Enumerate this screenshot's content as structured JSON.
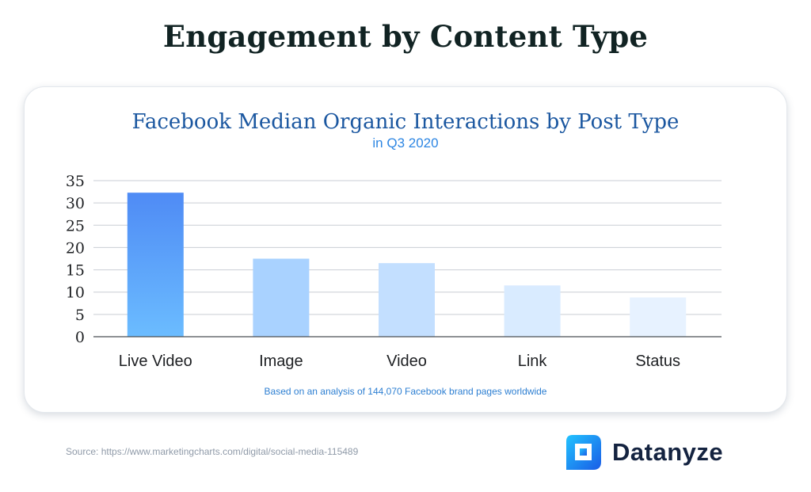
{
  "page": {
    "title": "Engagement by Content Type",
    "source": "Source: https://www.marketingcharts.com/digital/social-media-115489"
  },
  "brand": {
    "name": "Datanyze",
    "logo_icon": "datanyze-logo-icon"
  },
  "colors": {
    "title_text": "#112323",
    "chart_title": "#1b57a0",
    "chart_subtitle": "#2d86e3",
    "gridline": "#c9ced4",
    "bar_live_video_top": "#4f8bf5",
    "bar_live_video_bottom": "#6bbcff",
    "bar_image": "#a9d2ff",
    "bar_video": "#c3dfff",
    "bar_link": "#d9ebff",
    "bar_status": "#e7f2ff"
  },
  "chart_data": {
    "type": "bar",
    "title": "Facebook Median Organic Interactions by Post Type",
    "subtitle": "in Q3 2020",
    "note": "Based on an analysis of 144,070 Facebook brand pages worldwide",
    "categories": [
      "Live Video",
      "Image",
      "Video",
      "Link",
      "Status"
    ],
    "values": [
      32.3,
      17.5,
      16.5,
      11.5,
      8.8
    ],
    "xlabel": "",
    "ylabel": "",
    "ylim": [
      0,
      35
    ],
    "yticks": [
      0,
      5,
      10,
      15,
      20,
      25,
      30,
      35
    ],
    "grid": true,
    "legend": "none"
  }
}
